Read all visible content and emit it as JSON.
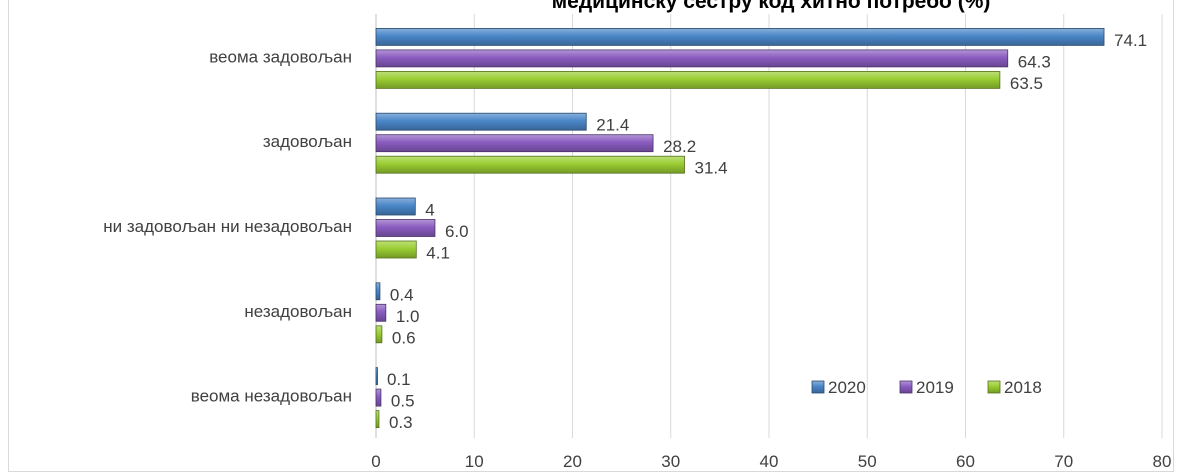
{
  "chart_data": {
    "type": "bar",
    "orientation": "horizontal",
    "title": "медицинску сестру код хитно потребо (%)",
    "categories": [
      "веома задовољан",
      "задовољан",
      "ни задовољан ни незадовољан",
      "незадовољан",
      "веома незадовољан"
    ],
    "series": [
      {
        "name": "2020",
        "color": "#4a86c8",
        "values": [
          74.1,
          21.4,
          4,
          0.4,
          0.1
        ],
        "labels": [
          "74.1",
          "21.4",
          "4",
          "0.4",
          "0.1"
        ]
      },
      {
        "name": "2019",
        "color": "#8a5cc0",
        "values": [
          64.3,
          28.2,
          6.0,
          1.0,
          0.5
        ],
        "labels": [
          "64.3",
          "28.2",
          "6.0",
          "1.0",
          "0.5"
        ]
      },
      {
        "name": "2018",
        "color": "#9acd32",
        "values": [
          63.5,
          31.4,
          4.1,
          0.6,
          0.3
        ],
        "labels": [
          "63.5",
          "31.4",
          "4.1",
          "0.6",
          "0.3"
        ]
      }
    ],
    "xlim": [
      0,
      80
    ],
    "xticks": [
      "0",
      "10",
      "20",
      "30",
      "40",
      "50",
      "60",
      "70",
      "80"
    ],
    "grid": true,
    "legend_position": "bottom-right"
  }
}
